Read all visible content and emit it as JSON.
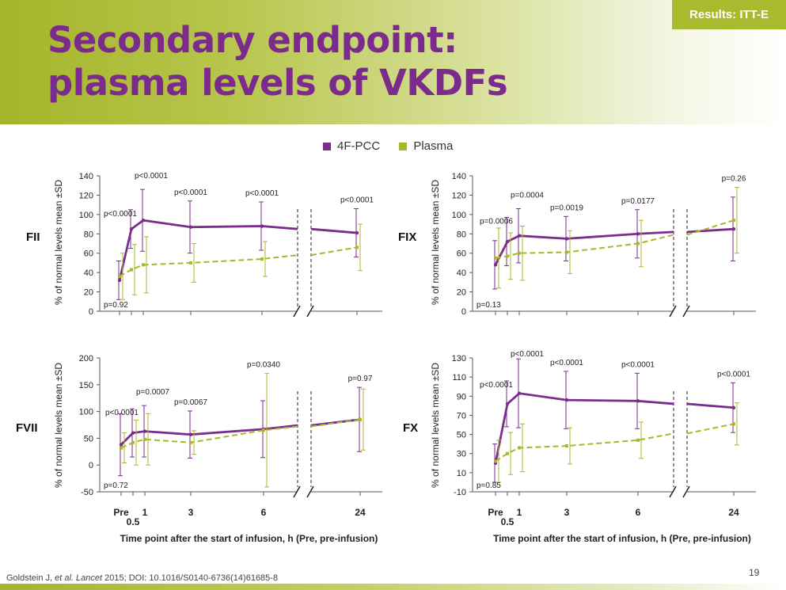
{
  "badge": "Results: ITT-E",
  "title": {
    "line1": "Secondary endpoint:",
    "line2": "plasma levels of VKDFs"
  },
  "legend": [
    {
      "label": "4F-PCC",
      "color": "#7b2d8e"
    },
    {
      "label": "Plasma",
      "color": "#a8b82b"
    }
  ],
  "colors": {
    "pcc": "#7b2d8e",
    "plasma": "#a8b82b",
    "accent": "#a9ba2f",
    "title": "#7a2b8c"
  },
  "footer": {
    "citation_prefix": "Goldstein J, ",
    "citation_italic": "et al. Lancet",
    "citation_suffix": " 2015; DOI: 10.1016/S0140-6736(14)61685-8",
    "page_number": "19"
  },
  "chart_data": [
    {
      "type": "line",
      "factor_label": "FII",
      "ylabel": "% of normal levels mean ±SD",
      "xlabel": "",
      "ylim": [
        0,
        140
      ],
      "yticks": [
        "0",
        "20",
        "40",
        "60",
        "80",
        "100",
        "120",
        "140"
      ],
      "x_categories": [
        "Pre",
        "0.5",
        "1",
        "3",
        "6",
        "24"
      ],
      "tick_labels_shown": false,
      "series": [
        {
          "name": "4F-PCC",
          "mean": [
            32,
            85,
            94,
            87,
            88,
            81
          ],
          "sd": [
            20,
            20,
            32,
            27,
            25,
            25
          ],
          "end_before_break": 85
        },
        {
          "name": "Plasma",
          "mean": [
            36,
            43,
            48,
            50,
            54,
            66
          ],
          "sd": [
            24,
            26,
            29,
            20,
            18,
            24
          ],
          "end_before_break": 58
        }
      ],
      "pvalues": [
        "p=0.92",
        "p<0.0001",
        "p<0.0001",
        "p<0.0001",
        "p<0.0001",
        "p<0.0001"
      ]
    },
    {
      "type": "line",
      "factor_label": "FIX",
      "ylabel": "% of normal levels mean ±SD",
      "xlabel": "",
      "ylim": [
        0,
        140
      ],
      "yticks": [
        "0",
        "20",
        "40",
        "60",
        "80",
        "100",
        "120",
        "140"
      ],
      "x_categories": [
        "Pre",
        "0.5",
        "1",
        "3",
        "6",
        "24"
      ],
      "tick_labels_shown": false,
      "series": [
        {
          "name": "4F-PCC",
          "mean": [
            48,
            72,
            78,
            75,
            80,
            85
          ],
          "sd": [
            25,
            25,
            28,
            23,
            25,
            33
          ],
          "end_before_break": 82
        },
        {
          "name": "Plasma",
          "mean": [
            55,
            57,
            60,
            61,
            70,
            94
          ],
          "sd": [
            31,
            24,
            28,
            22,
            24,
            34
          ],
          "end_before_break": 79
        }
      ],
      "pvalues": [
        "p=0.13",
        "p=0.0006",
        "p=0.0004",
        "p=0.0019",
        "p=0.0177",
        "p=0.26"
      ]
    },
    {
      "type": "line",
      "factor_label": "FVII",
      "ylabel": "% of normal levels mean ±SD",
      "xlabel": "Time point after the start of infusion, h (Pre, pre-infusion)",
      "ylim": [
        -50,
        200
      ],
      "yticks": [
        "-50",
        "0",
        "50",
        "100",
        "150",
        "200"
      ],
      "x_categories": [
        "Pre",
        "0.5",
        "1",
        "3",
        "6",
        "24"
      ],
      "tick_labels_shown": true,
      "series": [
        {
          "name": "4F-PCC",
          "mean": [
            38,
            60,
            63,
            57,
            67,
            85
          ],
          "sd": [
            58,
            45,
            48,
            44,
            53,
            60
          ],
          "end_before_break": 74
        },
        {
          "name": "Plasma",
          "mean": [
            32,
            42,
            48,
            42,
            65,
            85
          ],
          "sd": [
            28,
            42,
            48,
            22,
            106,
            57
          ],
          "end_before_break": 72
        }
      ],
      "pvalues": [
        "p=0.72",
        "p<0.0001",
        "p=0.0007",
        "p=0.0067",
        "p=0.0340",
        "p=0.97"
      ]
    },
    {
      "type": "line",
      "factor_label": "FX",
      "ylabel": "% of normal levels mean ±SD",
      "xlabel": "Time point after the start of infusion, h (Pre, pre-infusion)",
      "ylim": [
        -10,
        130
      ],
      "yticks": [
        "-10",
        "10",
        "30",
        "50",
        "70",
        "90",
        "110",
        "130"
      ],
      "x_categories": [
        "Pre",
        "0.5",
        "1",
        "3",
        "6",
        "24"
      ],
      "tick_labels_shown": true,
      "series": [
        {
          "name": "4F-PCC",
          "mean": [
            20,
            82,
            93,
            86,
            85,
            78
          ],
          "sd": [
            20,
            24,
            36,
            30,
            29,
            26
          ],
          "end_before_break": 82
        },
        {
          "name": "Plasma",
          "mean": [
            22,
            30,
            36,
            38,
            44,
            61
          ],
          "sd": [
            22,
            22,
            25,
            19,
            19,
            22
          ],
          "end_before_break": 51
        }
      ],
      "pvalues": [
        "p=0.85",
        "p<0.0001",
        "p<0.0001",
        "p<0.0001",
        "p<0.0001",
        "p<0.0001"
      ]
    }
  ]
}
